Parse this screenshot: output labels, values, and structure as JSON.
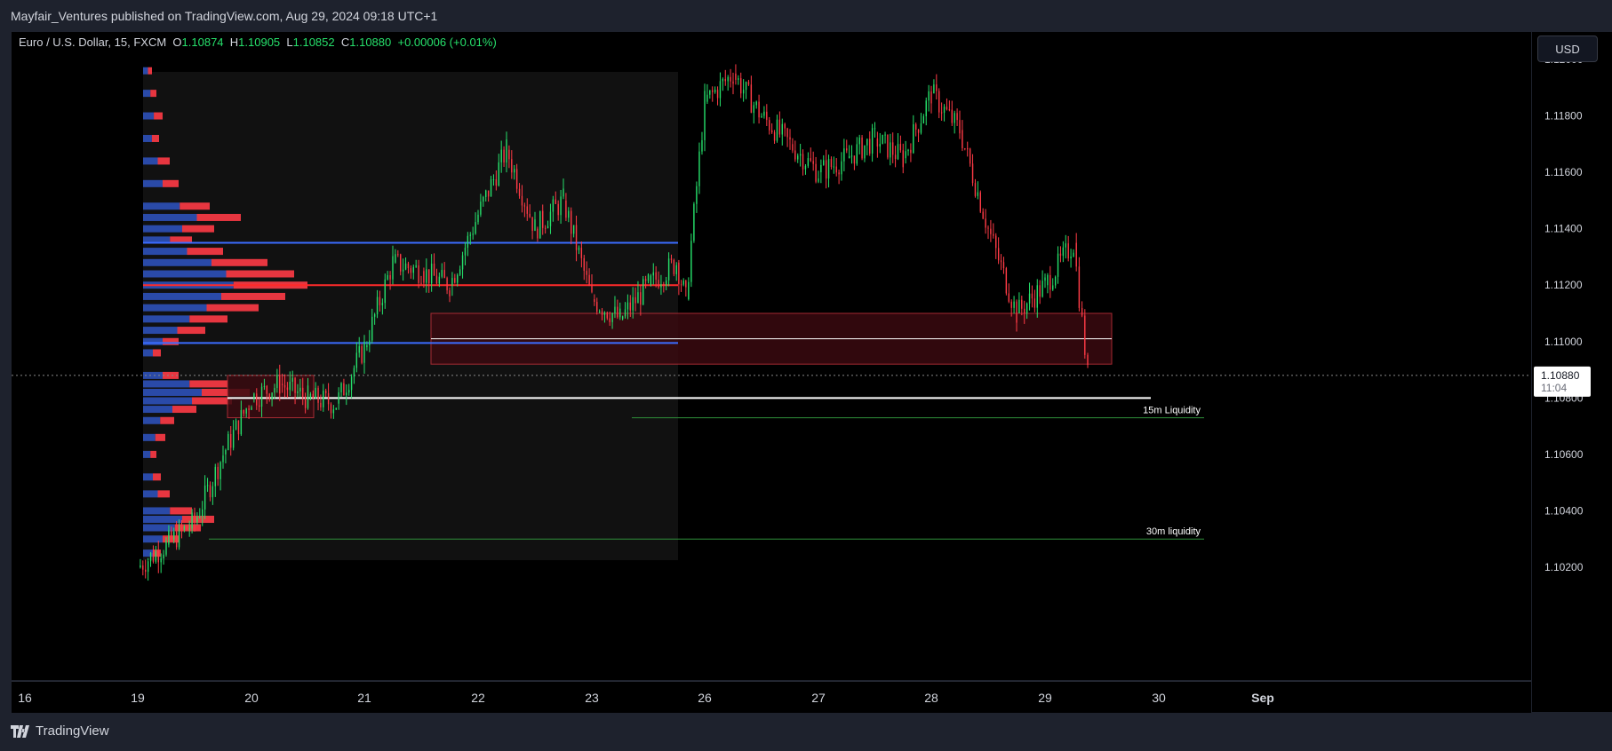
{
  "header": {
    "published": "Mayfair_Ventures published on TradingView.com, Aug 29, 2024 09:18 UTC+1"
  },
  "legend": {
    "symbol": "Euro / U.S. Dollar, 15, FXCM",
    "o_label": "O",
    "o_value": "1.10874",
    "h_label": "H",
    "h_value": "1.10905",
    "l_label": "L",
    "l_value": "1.10852",
    "c_label": "C",
    "c_value": "1.10880",
    "change": "+0.00006 (+0.01%)"
  },
  "currency_button": "USD",
  "current_price": {
    "value": "1.10880",
    "countdown": "11:04"
  },
  "footer": {
    "brand": "TradingView"
  },
  "colors": {
    "bull": "#26e06b",
    "bear": "#ff3b46",
    "profile_blue": "#2a4aa8",
    "profile_red": "#ff3b46",
    "zone_fill": "#3a0a10",
    "zone_border": "#c0303a",
    "hline_blue": "#3b6cff",
    "hline_red": "#ff2a2a"
  },
  "chart_data": {
    "type": "line",
    "title": "Euro / U.S. Dollar, 15, FXCM",
    "xlabel": "",
    "ylabel": "",
    "x_ticks": [
      "16",
      "19",
      "20",
      "21",
      "22",
      "23",
      "26",
      "27",
      "28",
      "29",
      "30",
      "Sep"
    ],
    "y_ticks": [
      "1.12000",
      "1.11800",
      "1.11600",
      "1.11400",
      "1.11200",
      "1.11000",
      "1.10800",
      "1.10600",
      "1.10400",
      "1.10200"
    ],
    "ylim": [
      1.1012,
      1.1203
    ],
    "grid": false,
    "series": [
      {
        "x": [
          "Aug 19 00:00",
          "Aug 19 06:00",
          "Aug 19 12:00",
          "Aug 19 18:00",
          "Aug 20 00:00",
          "Aug 20 06:00",
          "Aug 20 12:00",
          "Aug 20 18:00",
          "Aug 21 00:00",
          "Aug 21 06:00",
          "Aug 21 12:00",
          "Aug 21 18:00",
          "Aug 22 00:00",
          "Aug 22 06:00",
          "Aug 22 12:00",
          "Aug 22 18:00",
          "Aug 23 00:00",
          "Aug 23 06:00",
          "Aug 23 12:00",
          "Aug 23 18:00",
          "Aug 23 20:00",
          "Aug 26 00:00",
          "Aug 26 06:00",
          "Aug 26 12:00",
          "Aug 26 18:00",
          "Aug 27 00:00",
          "Aug 27 06:00",
          "Aug 27 12:00",
          "Aug 27 18:00",
          "Aug 28 00:00",
          "Aug 28 06:00",
          "Aug 28 12:00",
          "Aug 28 18:00",
          "Aug 29 00:00",
          "Aug 29 06:00",
          "Aug 29 09:00"
        ],
        "values": [
          1.102,
          1.1028,
          1.1036,
          1.106,
          1.108,
          1.1085,
          1.108,
          1.1078,
          1.1098,
          1.1128,
          1.1125,
          1.112,
          1.1145,
          1.1168,
          1.114,
          1.115,
          1.1115,
          1.1108,
          1.112,
          1.1128,
          1.1115,
          1.1185,
          1.1195,
          1.118,
          1.117,
          1.116,
          1.1165,
          1.1172,
          1.1165,
          1.1188,
          1.1175,
          1.114,
          1.111,
          1.112,
          1.1135,
          1.1088
        ]
      }
    ],
    "annotations": [
      {
        "label": "15m Liquidity",
        "price": 1.1073,
        "from": "Aug 23",
        "to": "Aug 30"
      },
      {
        "label": "30m liquidity",
        "price": 1.103,
        "from": "Aug 19",
        "to": "Aug 30"
      }
    ],
    "horizontal_levels": [
      {
        "kind": "value_area_high",
        "price": 1.1135,
        "color": "#3b6cff"
      },
      {
        "kind": "point_of_control",
        "price": 1.112,
        "color": "#ff2a2a"
      },
      {
        "kind": "value_area_low",
        "price": 1.10995,
        "color": "#3b6cff"
      },
      {
        "kind": "white_level",
        "price": 1.108
      },
      {
        "kind": "white_level",
        "price": 1.1101
      }
    ],
    "zones": [
      {
        "top": 1.111,
        "bottom": 1.1092,
        "from": "Aug 21",
        "to": "Aug 29"
      },
      {
        "top": 1.1088,
        "bottom": 1.1073,
        "from": "Aug 19",
        "to": "Aug 20"
      }
    ]
  }
}
